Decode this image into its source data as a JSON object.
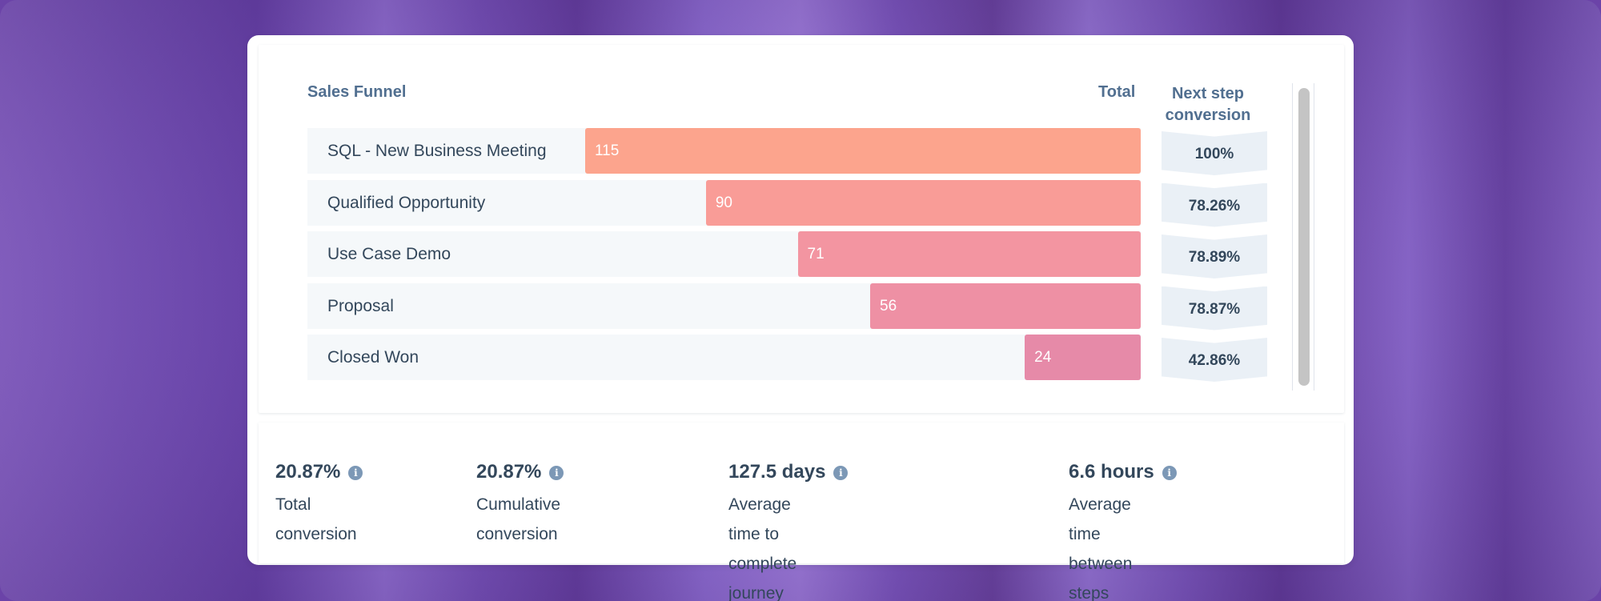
{
  "chart_data": {
    "type": "bar",
    "title": "Sales Funnel",
    "value_header": "Total",
    "conversion_header": "Next step conversion",
    "categories": [
      "SQL - New Business Meeting",
      "Qualified Opportunity",
      "Use Case Demo",
      "Proposal",
      "Closed Won"
    ],
    "values": [
      115,
      90,
      71,
      56,
      24
    ],
    "conversions": [
      "100%",
      "78.26%",
      "78.89%",
      "78.87%",
      "42.86%"
    ],
    "xlim": [
      0,
      115
    ],
    "colors": [
      "#fca48d",
      "#f99c97",
      "#f395a1",
      "#ee90a4",
      "#e68aa8"
    ]
  },
  "stats": [
    {
      "value": "20.87%",
      "desc_lines": [
        "Total",
        "conversion"
      ]
    },
    {
      "value": "20.87%",
      "desc_lines": [
        "Cumulative",
        "conversion"
      ]
    },
    {
      "value": "127.5 days",
      "desc_lines": [
        "Average time to complete",
        "journey"
      ]
    },
    {
      "value": "6.6 hours",
      "desc_lines": [
        "Average time between",
        "steps"
      ]
    }
  ],
  "icons": {
    "info": "info-icon"
  }
}
